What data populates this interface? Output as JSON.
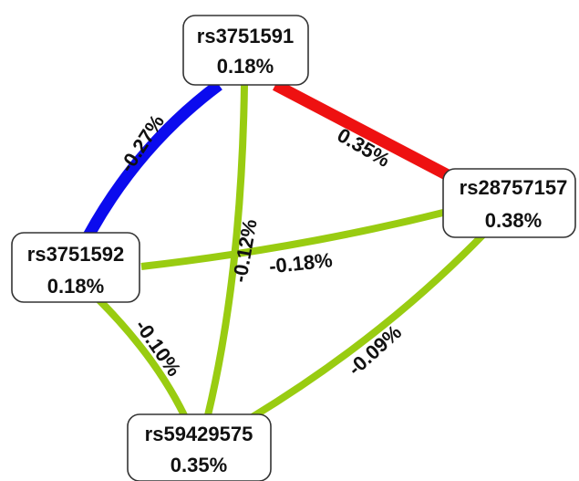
{
  "colors": {
    "negative_strong": "#0b0bee",
    "positive_strong": "#ee1111",
    "weak": "#99cc11",
    "node_fill": "#ffffff",
    "node_border": "#333333"
  },
  "nodes": [
    {
      "id": "n1",
      "label": "rs3751591",
      "value": "0.18%"
    },
    {
      "id": "n2",
      "label": "rs28757157",
      "value": "0.38%"
    },
    {
      "id": "n3",
      "label": "rs3751592",
      "value": "0.18%"
    },
    {
      "id": "n4",
      "label": "rs59429575",
      "value": "0.35%"
    }
  ],
  "edges": [
    {
      "id": "e1",
      "from": "rs3751591",
      "to": "rs3751592",
      "label": "-0.27%",
      "color_key": "negative_strong"
    },
    {
      "id": "e2",
      "from": "rs3751591",
      "to": "rs28757157",
      "label": "0.35%",
      "color_key": "positive_strong"
    },
    {
      "id": "e3",
      "from": "rs3751591",
      "to": "rs59429575",
      "label": "-0.12%",
      "color_key": "weak"
    },
    {
      "id": "e4",
      "from": "rs3751592",
      "to": "rs28757157",
      "label": "-0.18%",
      "color_key": "weak"
    },
    {
      "id": "e5",
      "from": "rs3751592",
      "to": "rs59429575",
      "label": "-0.10%",
      "color_key": "weak"
    },
    {
      "id": "e6",
      "from": "rs28757157",
      "to": "rs59429575",
      "label": "-0.09%",
      "color_key": "weak"
    }
  ]
}
